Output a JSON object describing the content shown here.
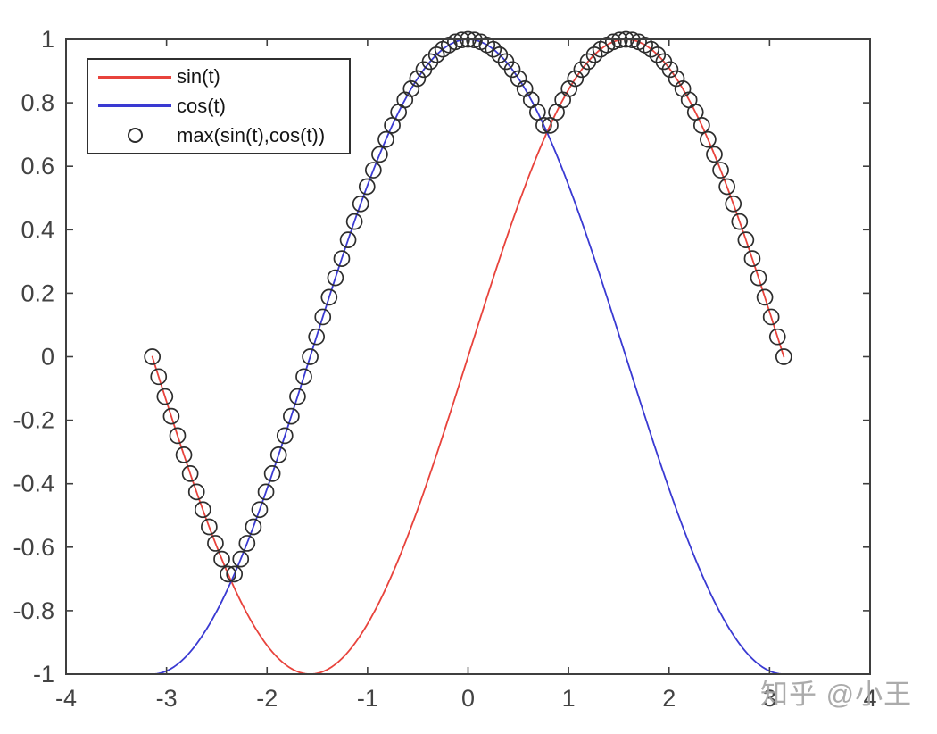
{
  "watermark": {
    "text": "知乎 @小王",
    "color": "#a3a3a3"
  },
  "chart_data": {
    "type": "line",
    "title": "",
    "xlabel": "",
    "ylabel": "",
    "xlim": [
      -4,
      4
    ],
    "ylim": [
      -1,
      1
    ],
    "grid": false,
    "background": "#ffffff",
    "axis_color": "#3f3f3f",
    "tick_label_color": "#434343",
    "tick_length": 8,
    "x_ticks": [
      -4,
      -3,
      -2,
      -1,
      0,
      1,
      2,
      3,
      4
    ],
    "x_tick_labels": [
      "-4",
      "-3",
      "-2",
      "-1",
      "0",
      "1",
      "2",
      "3",
      "4"
    ],
    "y_ticks": [
      -1,
      -0.8,
      -0.6,
      -0.4,
      -0.2,
      0,
      0.2,
      0.4,
      0.6,
      0.8,
      1
    ],
    "y_tick_labels": [
      "-1",
      "-0.8",
      "-0.6",
      "-0.4",
      "-0.2",
      "0",
      "0.2",
      "0.4",
      "0.6",
      "0.8",
      "1"
    ],
    "t_domain": [
      -3.141592653589793,
      3.141592653589793
    ],
    "series": [
      {
        "name": "sin(t)",
        "type": "line",
        "fn": "sin",
        "color": "#e8433c",
        "line_width": 1.8
      },
      {
        "name": "cos(t)",
        "type": "line",
        "fn": "cos",
        "color": "#3a3ad2",
        "line_width": 1.8
      },
      {
        "name": "max(sin(t),cos(t))",
        "type": "scatter",
        "fn": "max_sin_cos",
        "color": "#2d2d2d",
        "marker": "circle",
        "marker_radius": 8.5,
        "marker_stroke_width": 1.7,
        "n_points": 101
      }
    ],
    "legend": {
      "position": "northwest",
      "entries": [
        "sin(t)",
        "cos(t)",
        "max(sin(t),cos(t))"
      ]
    }
  }
}
